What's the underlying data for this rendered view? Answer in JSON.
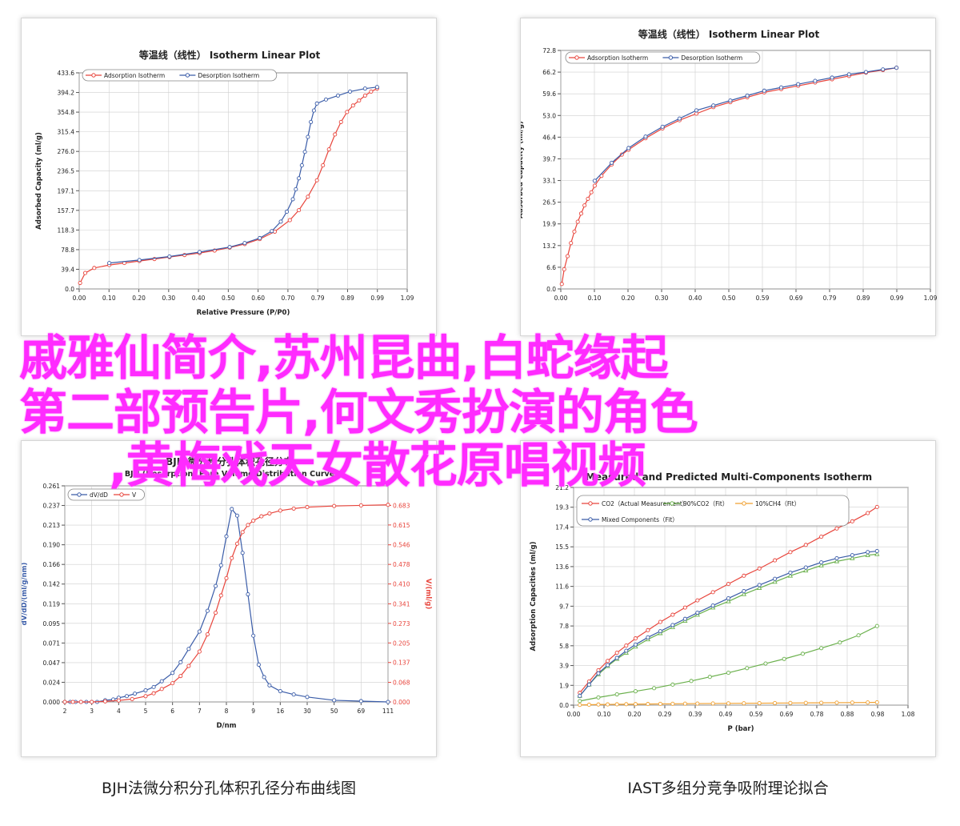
{
  "overlay_title": {
    "line1": "戚雅仙简介,苏州昆曲,白蛇缘起",
    "line2": "第二部预告片,何文秀扮演的角色",
    "line3": ",黄梅戏天女散花原唱视频"
  },
  "captions": {
    "left": "BJH法微分积分孔体积孔径分布曲线图",
    "right": "IAST多组分竞争吸附理论拟合"
  },
  "chart_data": [
    {
      "id": "p1",
      "type": "line",
      "title": "等温线（线性） Isotherm Linear Plot",
      "xlabel": "Relative Pressure (P/P0)",
      "ylabel": "Adsorbed Capacity (ml/g)",
      "xlim": [
        0,
        1.09
      ],
      "ylim": [
        0,
        433.6
      ],
      "xticks": [
        "0.00",
        "0.10",
        "0.20",
        "0.30",
        "0.40",
        "0.50",
        "0.60",
        "0.70",
        "0.79",
        "0.89",
        "0.99",
        "1.09"
      ],
      "yticks": [
        "0.0",
        "39.4",
        "78.8",
        "118.3",
        "157.7",
        "197.1",
        "236.5",
        "276.0",
        "315.4",
        "354.8",
        "394.2",
        "433.6"
      ],
      "grid": true,
      "legend": "top-left",
      "series": [
        {
          "name": "Adsorption Isotherm",
          "color": "#e8453c",
          "x": [
            0.003,
            0.02,
            0.05,
            0.1,
            0.15,
            0.2,
            0.25,
            0.3,
            0.35,
            0.4,
            0.45,
            0.5,
            0.55,
            0.6,
            0.65,
            0.7,
            0.73,
            0.76,
            0.79,
            0.81,
            0.83,
            0.85,
            0.87,
            0.89,
            0.91,
            0.93,
            0.95,
            0.97,
            0.99
          ],
          "y": [
            12,
            32,
            42,
            48,
            52,
            56,
            60,
            64,
            68,
            72,
            77,
            83,
            90,
            100,
            115,
            138,
            158,
            185,
            218,
            248,
            280,
            310,
            335,
            355,
            368,
            378,
            388,
            396,
            402
          ]
        },
        {
          "name": "Desorption Isotherm",
          "color": "#3a5ca8",
          "x": [
            0.1,
            0.2,
            0.3,
            0.4,
            0.5,
            0.55,
            0.6,
            0.64,
            0.67,
            0.69,
            0.71,
            0.72,
            0.73,
            0.74,
            0.75,
            0.76,
            0.77,
            0.78,
            0.79,
            0.82,
            0.86,
            0.9,
            0.95,
            0.99
          ],
          "y": [
            52,
            58,
            65,
            74,
            84,
            92,
            102,
            116,
            135,
            155,
            180,
            200,
            222,
            248,
            275,
            305,
            335,
            358,
            372,
            380,
            388,
            396,
            402,
            405
          ]
        }
      ]
    },
    {
      "id": "p2",
      "type": "line",
      "title": "等温线（线性） Isotherm Linear Plot",
      "xlabel": "",
      "ylabel": "Adsorbed Capacity (ml/g)",
      "xlim": [
        0,
        1.09
      ],
      "ylim": [
        0,
        72.8
      ],
      "xticks": [
        "0.00",
        "0.10",
        "0.20",
        "0.30",
        "0.40",
        "0.50",
        "0.59",
        "0.69",
        "0.79",
        "0.89",
        "0.99",
        "1.09"
      ],
      "yticks": [
        "0.0",
        "6.6",
        "13.2",
        "19.9",
        "26.5",
        "33.1",
        "39.7",
        "46.4",
        "53.0",
        "59.6",
        "66.2",
        "72.8"
      ],
      "grid": true,
      "legend": "top-left",
      "series": [
        {
          "name": "Adsorption Isotherm",
          "color": "#e8453c",
          "x": [
            0.003,
            0.01,
            0.02,
            0.03,
            0.04,
            0.05,
            0.06,
            0.07,
            0.08,
            0.09,
            0.1,
            0.12,
            0.15,
            0.18,
            0.2,
            0.25,
            0.3,
            0.35,
            0.4,
            0.45,
            0.5,
            0.55,
            0.6,
            0.65,
            0.7,
            0.75,
            0.8,
            0.85,
            0.9,
            0.95,
            0.99
          ],
          "y": [
            1.5,
            6,
            10,
            14,
            17.5,
            20.5,
            23,
            25.5,
            27.5,
            29.5,
            31.5,
            34.5,
            38,
            41,
            42.5,
            46,
            49,
            51.5,
            53.5,
            55.5,
            57,
            58.5,
            60,
            61,
            62,
            63,
            64,
            65,
            66,
            66.8,
            67.5
          ]
        },
        {
          "name": "Desorption Isotherm",
          "color": "#3a5ca8",
          "x": [
            0.1,
            0.15,
            0.2,
            0.25,
            0.3,
            0.35,
            0.4,
            0.45,
            0.5,
            0.55,
            0.6,
            0.65,
            0.7,
            0.75,
            0.8,
            0.85,
            0.9,
            0.95,
            0.99
          ],
          "y": [
            33,
            38.5,
            43,
            46.5,
            49.5,
            52,
            54.5,
            56,
            57.5,
            59,
            60.5,
            61.5,
            62.5,
            63.5,
            64.5,
            65.5,
            66.2,
            67,
            67.5
          ]
        }
      ]
    },
    {
      "id": "p3",
      "type": "line",
      "title": "BJH 微分积分孔体积孔径分布",
      "subtitle": "BJH (Desorption) Pore Volume Distribution Curve",
      "xlabel": "D/nm",
      "ylabel": "dV/dD/(ml/g/nm)",
      "ylabel_right": "V/(ml/g)",
      "xticks": [
        "2",
        "3",
        "4",
        "5",
        "6",
        "7",
        "8",
        "9",
        "16",
        "30",
        "50",
        "69",
        "111"
      ],
      "yticks": [
        "0.000",
        "0.024",
        "0.047",
        "0.071",
        "0.095",
        "0.119",
        "0.142",
        "0.166",
        "0.190",
        "0.213",
        "0.237",
        "0.261"
      ],
      "yticks_right": [
        "0.000",
        "0.068",
        "0.137",
        "0.205",
        "0.273",
        "0.341",
        "0.410",
        "0.478",
        "0.546",
        "0.615",
        "0.683"
      ],
      "ylim": [
        0,
        0.261
      ],
      "ylim_right": [
        0,
        0.751
      ],
      "grid": true,
      "legend": "top-left",
      "series": [
        {
          "name": "dV/dD",
          "color": "#3a5ca8",
          "x_index": [
            0,
            0.2,
            0.4,
            0.6,
            0.8,
            1.0,
            1.2,
            1.5,
            1.8,
            2.0,
            2.3,
            2.6,
            3.0,
            3.3,
            3.6,
            4.0,
            4.3,
            4.6,
            5.0,
            5.3,
            5.6,
            5.8,
            6.0,
            6.2,
            6.4,
            6.6,
            6.8,
            7.0,
            7.2,
            7.4,
            7.6,
            8.0,
            8.5,
            9.0,
            10.0,
            11.0,
            12.0
          ],
          "values": [
            0,
            0,
            0,
            0,
            0,
            0,
            0,
            0.002,
            0.003,
            0.005,
            0.007,
            0.01,
            0.014,
            0.018,
            0.025,
            0.035,
            0.048,
            0.064,
            0.085,
            0.11,
            0.14,
            0.165,
            0.2,
            0.233,
            0.225,
            0.18,
            0.13,
            0.08,
            0.045,
            0.03,
            0.02,
            0.013,
            0.009,
            0.006,
            0.002,
            0.001,
            0
          ]
        },
        {
          "name": "V",
          "color": "#e8453c",
          "axis": "right",
          "x_index": [
            0,
            0.3,
            0.6,
            1.0,
            1.5,
            2.0,
            2.5,
            3.0,
            3.3,
            3.6,
            4.0,
            4.3,
            4.6,
            5.0,
            5.3,
            5.6,
            5.8,
            6.0,
            6.2,
            6.4,
            6.6,
            6.8,
            7.0,
            7.3,
            7.6,
            8.0,
            8.5,
            9.0,
            10.0,
            11.0,
            12.0
          ],
          "values": [
            0,
            0,
            0,
            0,
            0.002,
            0.005,
            0.01,
            0.02,
            0.03,
            0.045,
            0.065,
            0.09,
            0.125,
            0.175,
            0.235,
            0.31,
            0.37,
            0.43,
            0.5,
            0.55,
            0.59,
            0.615,
            0.63,
            0.645,
            0.655,
            0.665,
            0.672,
            0.677,
            0.681,
            0.683,
            0.685
          ]
        }
      ]
    },
    {
      "id": "p4",
      "type": "line",
      "title": "Measured and Predicted Multi-Components Isotherm",
      "xlabel": "P (bar)",
      "ylabel": "Adsorption Capacities (ml/g)",
      "xlim": [
        0,
        1.08
      ],
      "ylim": [
        0,
        21.2
      ],
      "xticks": [
        "0.00",
        "0.10",
        "0.20",
        "0.29",
        "0.39",
        "0.49",
        "0.59",
        "0.69",
        "0.78",
        "0.88",
        "0.98",
        "1.08"
      ],
      "yticks": [
        "0.0",
        "1.9",
        "3.9",
        "5.8",
        "7.8",
        "9.7",
        "11.6",
        "13.6",
        "15.5",
        "17.4",
        "19.3",
        "21.2"
      ],
      "grid": true,
      "legend": "top",
      "series": [
        {
          "name": "CO2（Actual Measurement）",
          "color": "#e8453c",
          "x": [
            0.02,
            0.05,
            0.08,
            0.11,
            0.14,
            0.17,
            0.2,
            0.24,
            0.28,
            0.32,
            0.36,
            0.4,
            0.45,
            0.5,
            0.55,
            0.6,
            0.65,
            0.7,
            0.75,
            0.8,
            0.85,
            0.9,
            0.95,
            0.98
          ],
          "y": [
            1.2,
            2.3,
            3.4,
            4.3,
            5.1,
            5.8,
            6.5,
            7.3,
            8.1,
            8.8,
            9.5,
            10.2,
            11.0,
            11.8,
            12.6,
            13.3,
            14.1,
            14.9,
            15.6,
            16.4,
            17.2,
            17.9,
            18.7,
            19.3
          ]
        },
        {
          "name": "90%CO2（Fit）",
          "color": "#6ab04c",
          "x": [
            0.02,
            0.05,
            0.08,
            0.11,
            0.14,
            0.17,
            0.2,
            0.24,
            0.28,
            0.32,
            0.36,
            0.4,
            0.45,
            0.5,
            0.55,
            0.6,
            0.65,
            0.7,
            0.75,
            0.8,
            0.85,
            0.9,
            0.95,
            0.98
          ],
          "y": [
            0.9,
            2.0,
            3.0,
            3.8,
            4.5,
            5.1,
            5.7,
            6.4,
            7.0,
            7.6,
            8.2,
            8.8,
            9.5,
            10.1,
            10.8,
            11.4,
            12.0,
            12.6,
            13.1,
            13.6,
            14.0,
            14.3,
            14.6,
            14.7
          ]
        },
        {
          "name": "10%CH4（Fit）",
          "color": "#f0a030",
          "x": [
            0.02,
            0.05,
            0.08,
            0.11,
            0.14,
            0.17,
            0.2,
            0.24,
            0.28,
            0.32,
            0.36,
            0.4,
            0.45,
            0.5,
            0.55,
            0.6,
            0.65,
            0.7,
            0.75,
            0.8,
            0.85,
            0.9,
            0.95,
            0.98
          ],
          "y": [
            0.02,
            0.04,
            0.06,
            0.07,
            0.08,
            0.09,
            0.1,
            0.11,
            0.12,
            0.13,
            0.14,
            0.15,
            0.16,
            0.17,
            0.18,
            0.19,
            0.2,
            0.21,
            0.22,
            0.23,
            0.24,
            0.25,
            0.26,
            0.27
          ]
        },
        {
          "name": "Mixed Components（Fit）",
          "color": "#3a5ca8",
          "x": [
            0.02,
            0.05,
            0.08,
            0.11,
            0.14,
            0.17,
            0.2,
            0.24,
            0.28,
            0.32,
            0.36,
            0.4,
            0.45,
            0.5,
            0.55,
            0.6,
            0.65,
            0.7,
            0.75,
            0.8,
            0.85,
            0.9,
            0.95,
            0.98
          ],
          "y": [
            0.9,
            2.0,
            3.1,
            3.9,
            4.6,
            5.3,
            5.9,
            6.6,
            7.2,
            7.8,
            8.4,
            9.0,
            9.7,
            10.4,
            11.1,
            11.7,
            12.3,
            12.9,
            13.4,
            13.9,
            14.3,
            14.6,
            14.9,
            15.0
          ]
        },
        {
          "name": "",
          "color": "#6ab04c",
          "x": [
            0.02,
            0.08,
            0.14,
            0.2,
            0.26,
            0.32,
            0.38,
            0.44,
            0.5,
            0.56,
            0.62,
            0.68,
            0.74,
            0.8,
            0.86,
            0.92,
            0.98
          ],
          "y": [
            0.4,
            0.75,
            1.05,
            1.35,
            1.65,
            2.0,
            2.35,
            2.75,
            3.15,
            3.6,
            4.05,
            4.5,
            5.0,
            5.55,
            6.1,
            6.8,
            7.7
          ]
        }
      ]
    }
  ]
}
